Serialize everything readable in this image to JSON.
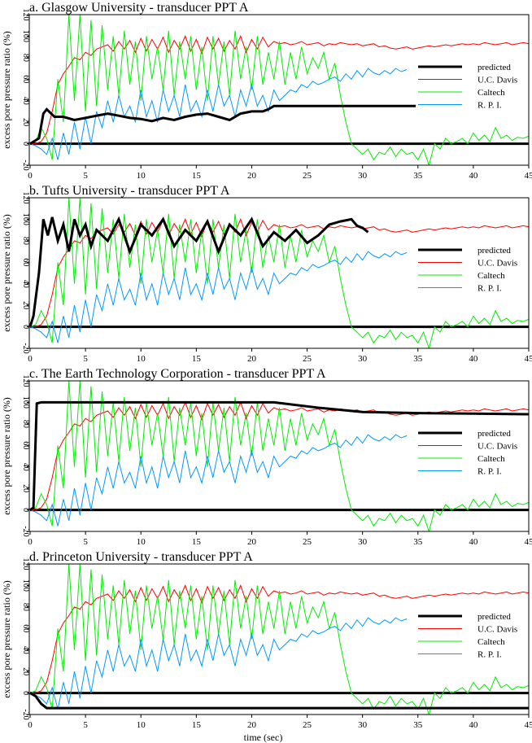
{
  "chart_data": {
    "type": "line",
    "xlabel": "time (sec)",
    "ylabel": "excess pore pressure ratio (%)",
    "xlim": [
      0,
      45
    ],
    "ylim": [
      -20,
      120
    ],
    "xticks": [
      0,
      5,
      10,
      15,
      20,
      25,
      30,
      35,
      40,
      45
    ],
    "yticks": [
      -20,
      0,
      20,
      40,
      60,
      80,
      100,
      120
    ],
    "grid": false,
    "legend_position": "right",
    "time_step": 0.5,
    "measured_series": [
      {
        "name": "U.C. Davis",
        "color": "#ff0000",
        "values": [
          0,
          0,
          2,
          10,
          30,
          55,
          65,
          72,
          80,
          78,
          85,
          82,
          88,
          90,
          92,
          86,
          95,
          88,
          96,
          85,
          98,
          86,
          97,
          88,
          99,
          85,
          96,
          88,
          100,
          86,
          97,
          84,
          99,
          88,
          98,
          86,
          96,
          88,
          100,
          85,
          97,
          88,
          99,
          90,
          95,
          93,
          94,
          92,
          93,
          95,
          92,
          93,
          94,
          91,
          93,
          92,
          94,
          93,
          92,
          93,
          91,
          92,
          93,
          90,
          91,
          89,
          88,
          89,
          90,
          88,
          89,
          90,
          91,
          90,
          91,
          92,
          91,
          92,
          93,
          92,
          93,
          92,
          94,
          93,
          92,
          93,
          94,
          92,
          93,
          94,
          93
        ]
      },
      {
        "name": "Caltech",
        "color": "#00ee00",
        "values": [
          0,
          2,
          15,
          5,
          -15,
          60,
          20,
          120,
          40,
          120,
          30,
          115,
          35,
          110,
          50,
          100,
          45,
          105,
          55,
          95,
          40,
          100,
          60,
          90,
          50,
          105,
          45,
          95,
          60,
          100,
          50,
          90,
          40,
          100,
          55,
          95,
          45,
          105,
          60,
          90,
          50,
          100,
          55,
          85,
          60,
          95,
          55,
          85,
          60,
          90,
          65,
          80,
          70,
          85,
          60,
          75,
          45,
          20,
          0,
          -5,
          -10,
          -5,
          -15,
          -8,
          -10,
          -3,
          -12,
          -5,
          -10,
          -8,
          -15,
          -5,
          -20,
          0,
          -5,
          5,
          0,
          2,
          5,
          0,
          10,
          3,
          8,
          2,
          15,
          5,
          8,
          3,
          6,
          5,
          7
        ]
      },
      {
        "name": "R. P. I.",
        "color": "#0099ff",
        "values": [
          0,
          -2,
          -5,
          -10,
          5,
          -15,
          10,
          -10,
          20,
          -5,
          25,
          0,
          30,
          15,
          40,
          20,
          45,
          25,
          35,
          20,
          50,
          25,
          40,
          20,
          50,
          30,
          45,
          25,
          55,
          30,
          40,
          25,
          50,
          30,
          55,
          35,
          45,
          25,
          50,
          35,
          55,
          35,
          45,
          30,
          50,
          40,
          45,
          50,
          48,
          55,
          52,
          58,
          55,
          57,
          60,
          62,
          58,
          65,
          60,
          68,
          62,
          70,
          66,
          64,
          68,
          65,
          70,
          67,
          69
        ]
      }
    ],
    "panels": [
      {
        "title": "a. Glasgow University - transducer PPT A",
        "predicted": {
          "name": "predicted",
          "t": [
            0,
            0.8,
            1.2,
            1.5,
            2.2,
            3,
            4,
            5,
            6,
            7,
            8,
            9,
            10,
            11,
            12,
            13,
            14,
            15,
            16,
            17,
            18,
            19,
            20,
            21,
            21.5,
            22,
            34.8
          ],
          "values": [
            0,
            5,
            28,
            32,
            25,
            25,
            22,
            24,
            26,
            28,
            26,
            24,
            23,
            21,
            24,
            22,
            25,
            27,
            28,
            25,
            22,
            28,
            30,
            30,
            32,
            35,
            35
          ]
        }
      },
      {
        "title": "b. Tufts University - transducer PPT A",
        "predicted": {
          "name": "predicted",
          "t": [
            0,
            0.3,
            0.8,
            1.2,
            1.6,
            2,
            2.5,
            3,
            3.5,
            4,
            4.5,
            5,
            5.5,
            6,
            7,
            8,
            9,
            10,
            11,
            12,
            13,
            14,
            15,
            16,
            17,
            18,
            19,
            20,
            21,
            22,
            23,
            24,
            25,
            26,
            27,
            28,
            29,
            29.5,
            30,
            30.5
          ],
          "values": [
            0,
            10,
            50,
            100,
            85,
            102,
            80,
            95,
            70,
            100,
            85,
            95,
            75,
            90,
            80,
            100,
            70,
            95,
            85,
            100,
            75,
            90,
            80,
            98,
            70,
            95,
            85,
            100,
            75,
            88,
            80,
            90,
            78,
            85,
            95,
            98,
            100,
            94,
            92,
            88
          ]
        }
      },
      {
        "title": "c. The Earth Technology Corporation - transducer PPT A",
        "predicted": {
          "name": "predicted",
          "t": [
            0,
            0.3,
            0.6,
            1,
            5,
            10,
            15,
            20,
            22,
            26,
            30,
            35,
            40,
            45
          ],
          "values": [
            0,
            2,
            99,
            100,
            100,
            100,
            100,
            100,
            100,
            95,
            91,
            90,
            89.5,
            89
          ]
        }
      },
      {
        "title": "d. Princeton University - transducer PPT A",
        "predicted": {
          "name": "predicted",
          "t": [
            0,
            0.5,
            1,
            1.5,
            45
          ],
          "values": [
            0,
            -3,
            -10,
            -14,
            -14
          ]
        }
      }
    ],
    "legend": [
      "predicted",
      "U.C. Davis",
      "Caltech",
      "R. P. I."
    ],
    "predicted_color": "#000000"
  }
}
